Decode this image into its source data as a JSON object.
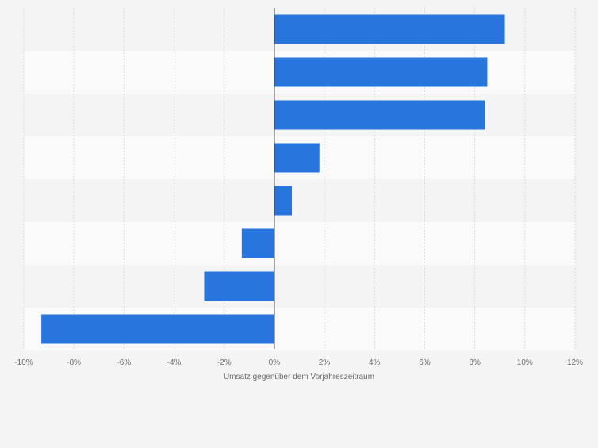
{
  "chart_data": {
    "type": "bar",
    "orientation": "horizontal",
    "categories": [
      "",
      "",
      "",
      "",
      "",
      "",
      "",
      ""
    ],
    "values": [
      9.2,
      8.5,
      8.4,
      1.8,
      0.7,
      -1.3,
      -2.8,
      -9.3
    ],
    "xlabel": "Umsatz gegenüber dem Vorjahreszeitraum",
    "xlim": [
      -10,
      12
    ],
    "xticks": [
      -10,
      -8,
      -6,
      -4,
      -2,
      0,
      2,
      4,
      6,
      8,
      10,
      12
    ],
    "xtick_labels": [
      "-10%",
      "-8%",
      "-6%",
      "-4%",
      "-2%",
      "0%",
      "2%",
      "4%",
      "6%",
      "8%",
      "10%",
      "12%"
    ],
    "grid": true,
    "legend": "none",
    "colors": {
      "bar": "#2876dd",
      "background": "#f4f4f4",
      "band_alt": "#fafafa",
      "grid": "#d8d8d8",
      "axis": "#333333",
      "text": "#6b6b6b"
    }
  }
}
